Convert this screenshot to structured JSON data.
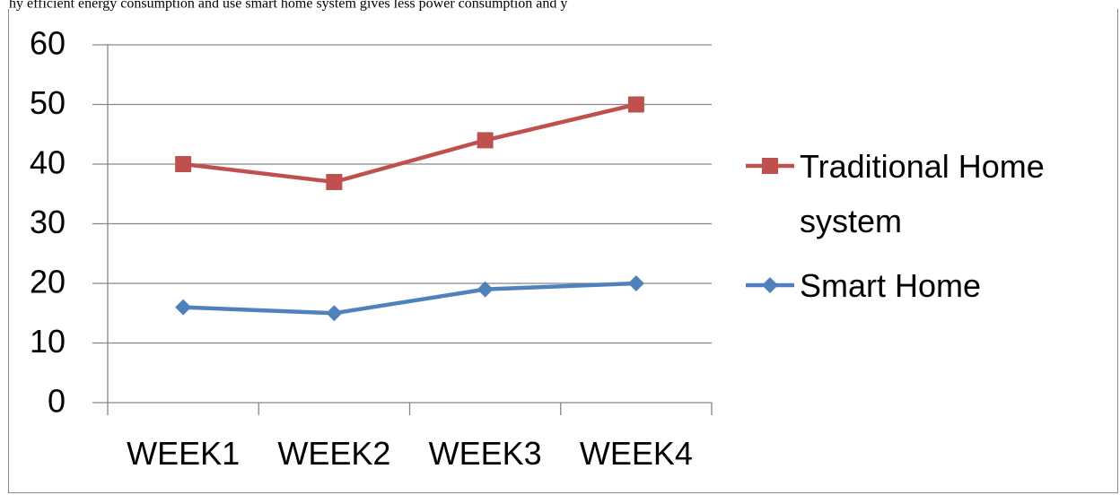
{
  "top_caption": "hy efficient energy consumption and use smart home system gives less power consumption and y",
  "chart_data": {
    "type": "line",
    "categories": [
      "WEEK1",
      "WEEK2",
      "WEEK3",
      "WEEK4"
    ],
    "series": [
      {
        "name": "Traditional Home system",
        "values": [
          40,
          37,
          44,
          50
        ],
        "color": "#c0504d",
        "marker": "square"
      },
      {
        "name": "Smart Home",
        "values": [
          16,
          15,
          19,
          20
        ],
        "color": "#4f81bd",
        "marker": "diamond"
      }
    ],
    "yticks": [
      0,
      10,
      20,
      30,
      40,
      50,
      60
    ],
    "ylim": [
      0,
      60
    ],
    "grid": true,
    "legend_position": "right",
    "title": "",
    "xlabel": "",
    "ylabel": ""
  },
  "legend": {
    "traditional_line1": "Traditional Home",
    "traditional_line2": "system",
    "smart": "Smart Home"
  }
}
